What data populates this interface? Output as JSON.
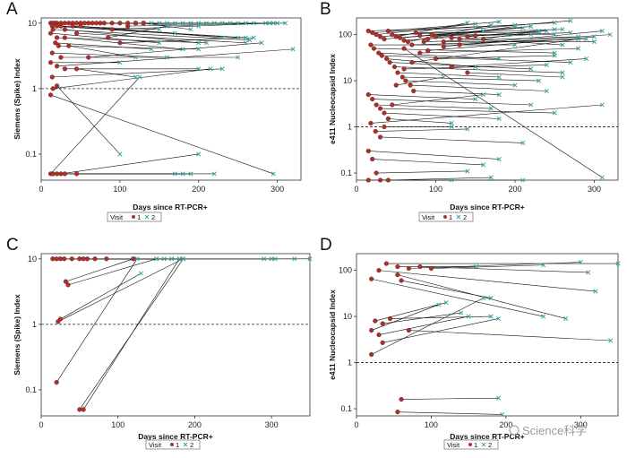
{
  "watermark": "Science科学",
  "chart_data": [
    {
      "panel": "A",
      "type": "scatter",
      "xlabel": "Days since RT-PCR+",
      "ylabel": "Siemens (Spike) Index",
      "scale": "log",
      "xlim": [
        0,
        330
      ],
      "ylim": [
        0.04,
        12
      ],
      "xticks": [
        "0",
        "100",
        "200",
        "300"
      ],
      "yticks": [
        "0.1",
        "1",
        "10"
      ],
      "threshold": 1,
      "legend": {
        "title": "Visit",
        "items": [
          "1",
          "2"
        ]
      },
      "pairs": [
        [
          12,
          10,
          300,
          10
        ],
        [
          15,
          10,
          295,
          10
        ],
        [
          18,
          10,
          285,
          10
        ],
        [
          20,
          10,
          270,
          10
        ],
        [
          25,
          10,
          260,
          10
        ],
        [
          30,
          10,
          250,
          10
        ],
        [
          35,
          10,
          240,
          10
        ],
        [
          40,
          10,
          230,
          10
        ],
        [
          45,
          10,
          220,
          10
        ],
        [
          50,
          10,
          210,
          10
        ],
        [
          55,
          10,
          200,
          10
        ],
        [
          60,
          10,
          190,
          10
        ],
        [
          65,
          10,
          180,
          10
        ],
        [
          70,
          10,
          170,
          10
        ],
        [
          75,
          10,
          160,
          10
        ],
        [
          80,
          10,
          150,
          10
        ],
        [
          90,
          10,
          140,
          10
        ],
        [
          100,
          10,
          130,
          10
        ],
        [
          110,
          10,
          120,
          10
        ],
        [
          120,
          10,
          200,
          9
        ],
        [
          130,
          10,
          190,
          8
        ],
        [
          14,
          9,
          250,
          6
        ],
        [
          20,
          9,
          260,
          6
        ],
        [
          25,
          9,
          150,
          8
        ],
        [
          30,
          8,
          200,
          5
        ],
        [
          15,
          8,
          265,
          5.5
        ],
        [
          40,
          9,
          170,
          7
        ],
        [
          50,
          9,
          230,
          6
        ],
        [
          12,
          7,
          150,
          5
        ],
        [
          20,
          6,
          210,
          5
        ],
        [
          30,
          6,
          180,
          4
        ],
        [
          45,
          7,
          260,
          5
        ],
        [
          18,
          5,
          140,
          4
        ],
        [
          22,
          4.5,
          200,
          4
        ],
        [
          35,
          4.5,
          120,
          3
        ],
        [
          14,
          3.5,
          160,
          3
        ],
        [
          25,
          3,
          250,
          3
        ],
        [
          12,
          2.5,
          100,
          2.5
        ],
        [
          20,
          2.2,
          320,
          4
        ],
        [
          30,
          2,
          200,
          2
        ],
        [
          45,
          2,
          120,
          1.5
        ],
        [
          14,
          1.5,
          230,
          2
        ],
        [
          20,
          1.1,
          100,
          0.1
        ],
        [
          15,
          1,
          215,
          2
        ],
        [
          12,
          0.8,
          295,
          0.05
        ],
        [
          60,
          3,
          280,
          5
        ],
        [
          100,
          5,
          270,
          6
        ],
        [
          90,
          8,
          290,
          10
        ],
        [
          110,
          9,
          310,
          10
        ],
        [
          85,
          6,
          160,
          9
        ],
        [
          12,
          0.05,
          125,
          1.5
        ],
        [
          15,
          0.05,
          180,
          0.05
        ],
        [
          20,
          0.05,
          220,
          0.05
        ],
        [
          25,
          0.05,
          200,
          0.1
        ],
        [
          30,
          0.05,
          170,
          0.05
        ],
        [
          45,
          0.05,
          190,
          0.05
        ]
      ]
    },
    {
      "panel": "B",
      "type": "scatter",
      "xlabel": "Days since RT-PCR+",
      "ylabel": "e411 Nucleocapsid Index",
      "scale": "log",
      "xlim": [
        0,
        330
      ],
      "ylim": [
        0.07,
        230
      ],
      "xticks": [
        "0",
        "100",
        "200",
        "300"
      ],
      "yticks": [
        "0.1",
        "1",
        "10",
        "100"
      ],
      "threshold": 1,
      "legend": {
        "title": "Visit",
        "items": [
          "1",
          "2"
        ]
      },
      "pairs": [
        [
          15,
          120,
          200,
          160
        ],
        [
          20,
          110,
          250,
          180
        ],
        [
          25,
          100,
          150,
          170
        ],
        [
          30,
          90,
          270,
          200
        ],
        [
          35,
          80,
          220,
          150
        ],
        [
          40,
          120,
          180,
          190
        ],
        [
          45,
          100,
          260,
          130
        ],
        [
          50,
          90,
          140,
          180
        ],
        [
          55,
          85,
          210,
          140
        ],
        [
          60,
          75,
          240,
          120
        ],
        [
          65,
          70,
          170,
          160
        ],
        [
          70,
          60,
          290,
          80
        ],
        [
          75,
          110,
          230,
          110
        ],
        [
          80,
          95,
          190,
          100
        ],
        [
          85,
          70,
          280,
          90
        ],
        [
          90,
          80,
          160,
          120
        ],
        [
          95,
          100,
          250,
          100
        ],
        [
          100,
          90,
          200,
          150
        ],
        [
          110,
          70,
          300,
          70
        ],
        [
          120,
          85,
          260,
          60
        ],
        [
          130,
          80,
          220,
          100
        ],
        [
          140,
          90,
          250,
          130
        ],
        [
          150,
          95,
          270,
          110
        ],
        [
          160,
          80,
          230,
          120
        ],
        [
          18,
          60,
          200,
          60
        ],
        [
          22,
          50,
          250,
          40
        ],
        [
          28,
          40,
          180,
          30
        ],
        [
          32,
          35,
          270,
          25
        ],
        [
          38,
          30,
          150,
          20
        ],
        [
          42,
          25,
          220,
          18
        ],
        [
          48,
          20,
          260,
          15
        ],
        [
          52,
          15,
          180,
          12
        ],
        [
          58,
          12,
          230,
          10
        ],
        [
          62,
          10,
          200,
          8
        ],
        [
          68,
          8,
          240,
          6
        ],
        [
          72,
          6,
          180,
          5
        ],
        [
          15,
          5,
          150,
          4
        ],
        [
          20,
          4,
          220,
          3
        ],
        [
          25,
          3,
          170,
          2.5
        ],
        [
          30,
          2.5,
          250,
          2
        ],
        [
          35,
          2,
          180,
          1.5
        ],
        [
          40,
          1.5,
          120,
          1.2
        ],
        [
          18,
          1.2,
          310,
          3
        ],
        [
          24,
          0.8,
          140,
          0.9
        ],
        [
          30,
          0.6,
          210,
          0.45
        ],
        [
          60,
          50,
          310,
          0.08
        ],
        [
          15,
          0.3,
          180,
          0.2
        ],
        [
          20,
          0.2,
          160,
          0.15
        ],
        [
          25,
          0.1,
          140,
          0.11
        ],
        [
          30,
          0.07,
          210,
          0.07
        ],
        [
          40,
          0.07,
          170,
          0.08
        ],
        [
          15,
          0.07,
          120,
          0.07
        ],
        [
          80,
          40,
          280,
          50
        ],
        [
          100,
          30,
          250,
          35
        ],
        [
          120,
          20,
          290,
          30
        ],
        [
          140,
          15,
          260,
          12
        ],
        [
          70,
          25,
          280,
          80
        ],
        [
          90,
          45,
          300,
          90
        ],
        [
          110,
          55,
          310,
          120
        ],
        [
          130,
          60,
          320,
          100
        ],
        [
          60,
          18,
          240,
          22
        ],
        [
          50,
          8,
          110,
          12
        ],
        [
          45,
          3,
          160,
          5
        ],
        [
          35,
          1,
          120,
          1
        ]
      ]
    },
    {
      "panel": "C",
      "type": "scatter",
      "xlabel": "Days since RT-PCR+",
      "ylabel": "Siemens (Spike) Index",
      "scale": "log",
      "xlim": [
        0,
        350
      ],
      "ylim": [
        0.04,
        12
      ],
      "xticks": [
        "0",
        "100",
        "200",
        "300"
      ],
      "yticks": [
        "0.1",
        "1",
        "10"
      ],
      "threshold": 1,
      "legend": {
        "title": "Visit",
        "items": [
          "1",
          "2"
        ]
      },
      "pairs": [
        [
          15,
          10,
          180,
          10
        ],
        [
          20,
          10,
          170,
          10
        ],
        [
          25,
          10,
          160,
          10
        ],
        [
          30,
          10,
          185,
          10
        ],
        [
          40,
          10,
          150,
          10
        ],
        [
          50,
          10,
          300,
          10
        ],
        [
          55,
          10,
          305,
          10
        ],
        [
          60,
          10,
          290,
          10
        ],
        [
          70,
          10,
          330,
          10
        ],
        [
          85,
          10,
          350,
          10
        ],
        [
          120,
          10,
          170,
          10
        ],
        [
          35,
          4,
          150,
          10
        ],
        [
          32,
          4.5,
          120,
          10
        ],
        [
          25,
          1.2,
          130,
          6
        ],
        [
          22,
          1.1,
          185,
          10
        ],
        [
          20,
          0.13,
          125,
          10
        ],
        [
          50,
          0.05,
          185,
          10
        ],
        [
          55,
          0.05,
          180,
          10
        ]
      ]
    },
    {
      "panel": "D",
      "type": "scatter",
      "xlabel": "Days since RT-PCR+",
      "ylabel": "e411 Nucleocapsid Index",
      "scale": "log",
      "xlim": [
        0,
        350
      ],
      "ylim": [
        0.07,
        230
      ],
      "xticks": [
        "0",
        "100",
        "200",
        "300"
      ],
      "yticks": [
        "0.1",
        "1",
        "10",
        "100"
      ],
      "threshold": 1,
      "legend": {
        "title": "Visit",
        "items": [
          "1",
          "2"
        ]
      },
      "pairs": [
        [
          40,
          140,
          350,
          140
        ],
        [
          55,
          120,
          160,
          120
        ],
        [
          70,
          110,
          300,
          150
        ],
        [
          85,
          120,
          310,
          90
        ],
        [
          100,
          110,
          250,
          130
        ],
        [
          30,
          100,
          320,
          35
        ],
        [
          55,
          80,
          280,
          9
        ],
        [
          20,
          65,
          250,
          10
        ],
        [
          60,
          60,
          180,
          25
        ],
        [
          45,
          9,
          180,
          10
        ],
        [
          25,
          8,
          120,
          20
        ],
        [
          35,
          7,
          140,
          12
        ],
        [
          20,
          5,
          110,
          18
        ],
        [
          30,
          4,
          150,
          10
        ],
        [
          70,
          5,
          340,
          3
        ],
        [
          35,
          2.7,
          190,
          9
        ],
        [
          20,
          1.5,
          170,
          25
        ],
        [
          60,
          0.16,
          190,
          0.17
        ],
        [
          55,
          0.085,
          195,
          0.075
        ]
      ]
    }
  ]
}
